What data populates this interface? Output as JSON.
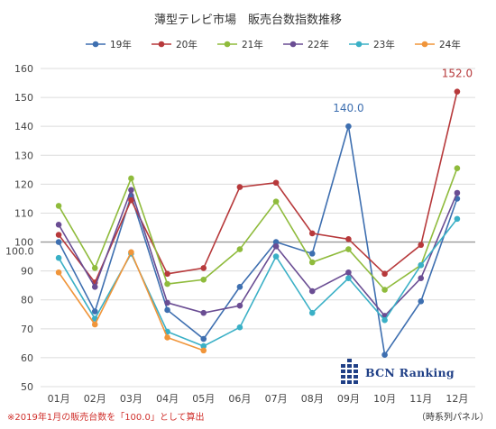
{
  "chart_data": {
    "type": "line",
    "title": "薄型テレビ市場　販売台数指数推移",
    "categories": [
      "01月",
      "02月",
      "03月",
      "04月",
      "05月",
      "06月",
      "07月",
      "08月",
      "09月",
      "10月",
      "11月",
      "12月"
    ],
    "yticks": [
      "50",
      "60",
      "70",
      "80",
      "90",
      "100",
      "110",
      "120",
      "130",
      "140",
      "150",
      "160"
    ],
    "ylim": [
      50,
      160
    ],
    "reference_value": 100,
    "reference_label": "100.0",
    "grid": true,
    "legend_position": "top",
    "series": [
      {
        "name": "19年",
        "color": "#3e6fb0",
        "values": [
          100.0,
          76.0,
          116.0,
          76.5,
          66.5,
          84.5,
          100.0,
          96.0,
          140.0,
          61.0,
          79.5,
          115.0
        ]
      },
      {
        "name": "20年",
        "color": "#b7393b",
        "values": [
          102.5,
          86.0,
          114.5,
          89.0,
          91.0,
          119.0,
          120.5,
          103.0,
          101.0,
          89.0,
          99.0,
          152.0
        ]
      },
      {
        "name": "21年",
        "color": "#8fbb3c",
        "values": [
          112.5,
          91.0,
          122.0,
          85.5,
          87.0,
          97.5,
          114.0,
          93.0,
          97.5,
          83.5,
          92.0,
          125.5
        ]
      },
      {
        "name": "22年",
        "color": "#6a4d93",
        "values": [
          106.0,
          84.5,
          118.0,
          79.0,
          75.5,
          78.0,
          98.5,
          83.0,
          89.5,
          74.5,
          87.5,
          117.0
        ]
      },
      {
        "name": "23年",
        "color": "#3ab0c6",
        "values": [
          94.5,
          73.5,
          96.0,
          69.0,
          64.0,
          70.5,
          95.0,
          75.5,
          87.5,
          73.0,
          92.0,
          108.0
        ]
      },
      {
        "name": "24年",
        "color": "#f0953a",
        "values": [
          89.5,
          71.5,
          96.5,
          67.0,
          62.5,
          null,
          null,
          null,
          null,
          null,
          null,
          null
        ]
      }
    ],
    "annotations": [
      {
        "text": "152.0",
        "series": "20年",
        "category": "12月",
        "color": "#b7393b"
      },
      {
        "text": "140.0",
        "series": "19年",
        "category": "09月",
        "color": "#3e6fb0"
      }
    ]
  },
  "footnote": "※2019年1月の販売台数を「100.0」として算出",
  "panel_note": "（時系列パネル）",
  "brand": {
    "name": "BCN Ranking",
    "color": "#1f3f86"
  },
  "footnote_color": "#d0312d"
}
